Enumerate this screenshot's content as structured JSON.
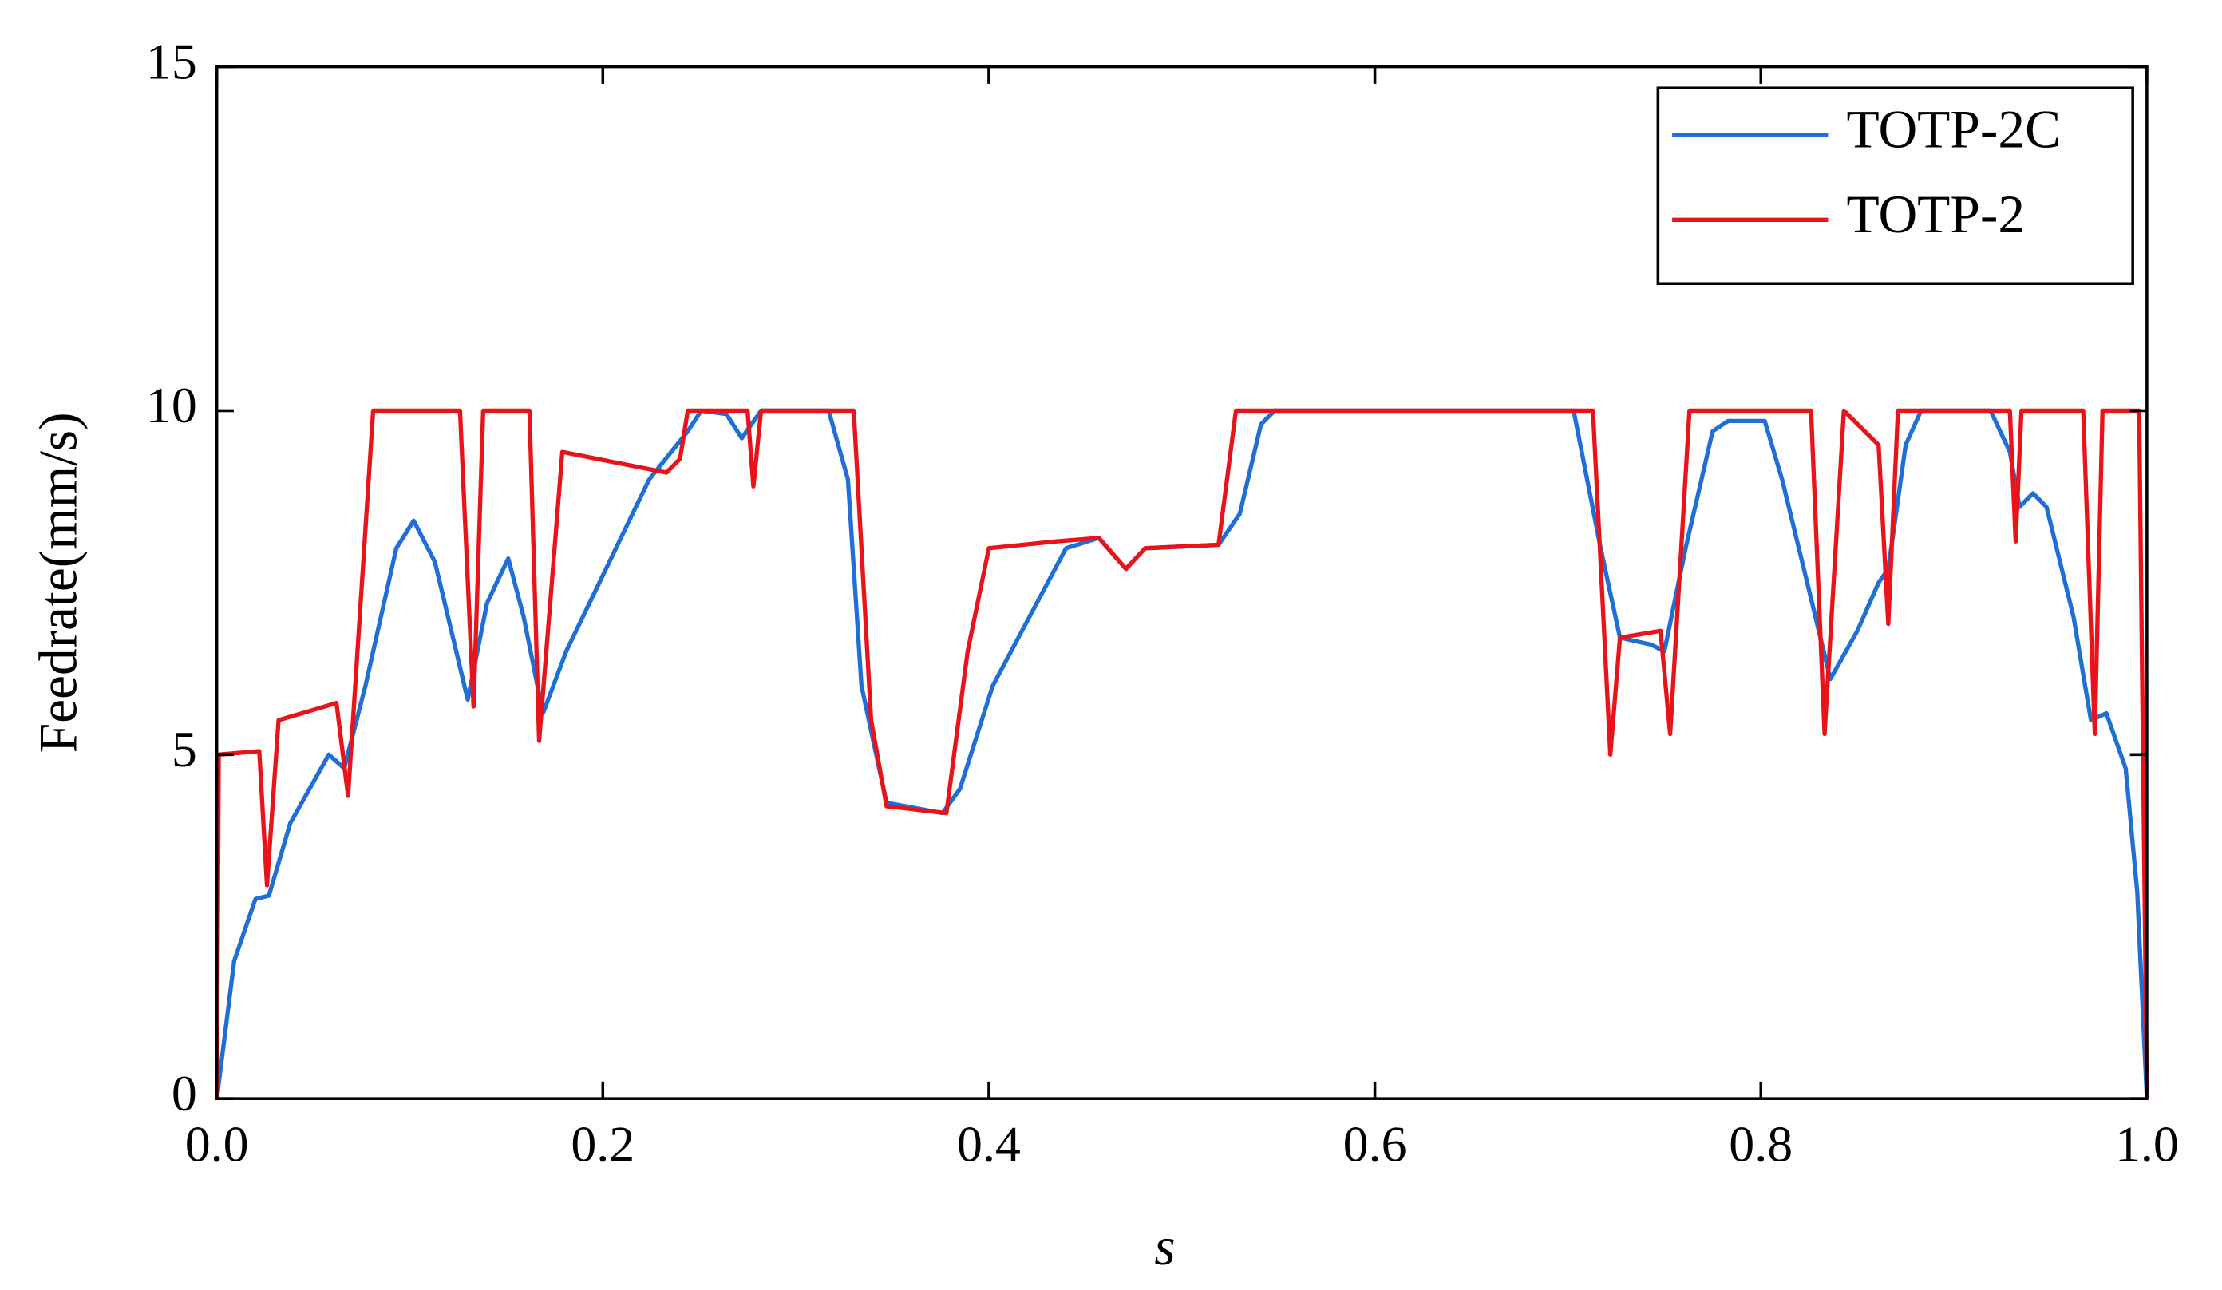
{
  "chart_data": {
    "type": "line",
    "xlabel": "s",
    "ylabel": "Feedrate(mm/s)",
    "xlim": [
      0,
      1
    ],
    "xticks": [
      {
        "value": 0,
        "label": "0.0"
      },
      0.2,
      0.4,
      0.6,
      0.8,
      {
        "value": 1,
        "label": "1.0"
      }
    ],
    "ylim": [
      0,
      15
    ],
    "yticks": [
      0,
      5,
      10,
      15
    ],
    "legend": "upper right",
    "series": [
      {
        "name": "TOTP-2C",
        "color": "#1f6fd6",
        "x": [
          0,
          0.009,
          0.02,
          0.027,
          0.038,
          0.058,
          0.066,
          0.077,
          0.093,
          0.102,
          0.113,
          0.13,
          0.14,
          0.145,
          0.151,
          0.159,
          0.169,
          0.181,
          0.224,
          0.244,
          0.251,
          0.264,
          0.272,
          0.282,
          0.317,
          0.327,
          0.334,
          0.347,
          0.376,
          0.385,
          0.402,
          0.44,
          0.457,
          0.471,
          0.481,
          0.519,
          0.53,
          0.541,
          0.548,
          0.703,
          0.717,
          0.727,
          0.743,
          0.75,
          0.761,
          0.775,
          0.783,
          0.802,
          0.811,
          0.824,
          0.836,
          0.85,
          0.861,
          0.866,
          0.875,
          0.883,
          0.919,
          0.929,
          0.934,
          0.941,
          0.948,
          0.962,
          0.971,
          0.979,
          0.989,
          0.995,
          1.0
        ],
        "values": [
          0,
          2.0,
          2.9,
          2.95,
          4.0,
          5.0,
          4.8,
          6.0,
          8.0,
          8.4,
          7.8,
          5.8,
          7.2,
          7.5,
          7.85,
          7.0,
          5.6,
          6.5,
          9.0,
          9.7,
          10,
          9.95,
          9.6,
          10,
          10,
          9.0,
          6.0,
          4.3,
          4.15,
          4.5,
          6.0,
          8.0,
          8.15,
          7.7,
          8.0,
          8.05,
          8.5,
          9.8,
          10,
          10,
          8.0,
          6.7,
          6.6,
          6.5,
          8.0,
          9.7,
          9.85,
          9.85,
          9.0,
          7.5,
          6.1,
          6.8,
          7.5,
          7.7,
          9.5,
          10,
          10,
          9.4,
          8.6,
          8.8,
          8.6,
          7.0,
          5.5,
          5.6,
          4.8,
          3.0,
          0
        ]
      },
      {
        "name": "TOTP-2",
        "color": "#e8141a",
        "x": [
          0,
          0.001,
          0.022,
          0.026,
          0.032,
          0.062,
          0.068,
          0.081,
          0.126,
          0.133,
          0.138,
          0.162,
          0.167,
          0.179,
          0.233,
          0.24,
          0.244,
          0.275,
          0.278,
          0.282,
          0.33,
          0.339,
          0.347,
          0.378,
          0.389,
          0.4,
          0.435,
          0.457,
          0.471,
          0.481,
          0.519,
          0.528,
          0.713,
          0.722,
          0.727,
          0.748,
          0.753,
          0.763,
          0.826,
          0.833,
          0.843,
          0.861,
          0.866,
          0.871,
          0.929,
          0.932,
          0.935,
          0.967,
          0.973,
          0.977,
          0.996,
          1.0
        ],
        "values": [
          0,
          5.0,
          5.05,
          3.1,
          5.5,
          5.75,
          4.4,
          10,
          10,
          5.7,
          10,
          10,
          5.2,
          9.4,
          9.1,
          9.3,
          10,
          10,
          8.9,
          10,
          10,
          5.5,
          4.25,
          4.15,
          6.5,
          8.0,
          8.1,
          8.15,
          7.7,
          8.0,
          8.05,
          10,
          10,
          5.0,
          6.7,
          6.8,
          5.3,
          10,
          10,
          5.3,
          10,
          9.5,
          6.9,
          10,
          10,
          8.1,
          10,
          10,
          5.3,
          10,
          10,
          0
        ]
      }
    ]
  }
}
